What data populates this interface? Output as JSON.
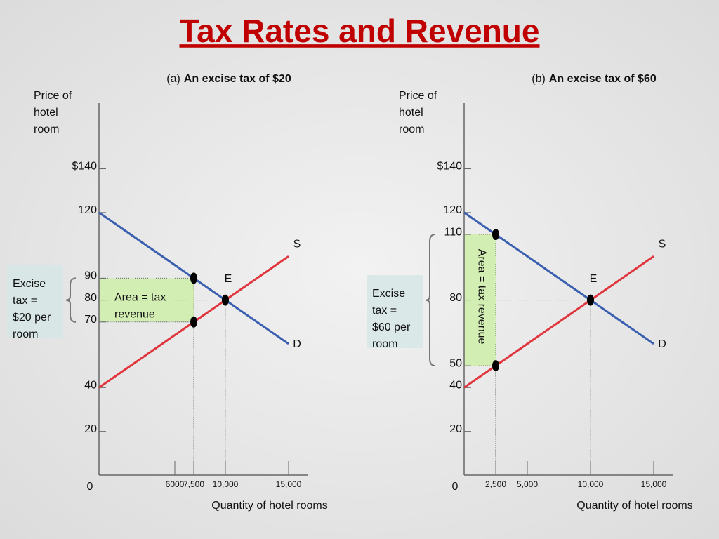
{
  "title": "Tax Rates and Revenue",
  "chart_data": [
    {
      "type": "line",
      "panel": "(a)",
      "subtitle": "An excise tax of $20",
      "y_label": [
        "Price of",
        "hotel",
        "room"
      ],
      "x_label": "Quantity of hotel rooms",
      "origin": 0,
      "xlim": [
        0,
        16500
      ],
      "ylim": [
        0,
        170
      ],
      "xticks": [
        6000,
        {
          "value": 7500,
          "label": "7,500"
        },
        {
          "value": 10000,
          "label": "10,000"
        },
        {
          "value": 15000,
          "label": "15,000"
        }
      ],
      "yticks": [
        20,
        40,
        70,
        80,
        90,
        120,
        {
          "value": 140,
          "label": "$140"
        }
      ],
      "series": [
        {
          "name": "S",
          "color": "#e0353d",
          "x": [
            0,
            15000
          ],
          "values": [
            40,
            100
          ]
        },
        {
          "name": "D",
          "color": "#3a5fb0",
          "x": [
            0,
            15000
          ],
          "values": [
            120,
            60
          ]
        }
      ],
      "equilibrium": {
        "label": "E",
        "x": 10000,
        "value": 80
      },
      "tax_points": {
        "x": [
          7500,
          7500
        ],
        "values": [
          90,
          70
        ]
      },
      "area": {
        "label": [
          "Area = tax",
          "revenue"
        ],
        "rotated": false,
        "x": [
          0,
          7500
        ],
        "y": [
          70,
          90
        ]
      },
      "tax_label": [
        "Excise",
        "tax =",
        "$20 per",
        "room"
      ]
    },
    {
      "type": "line",
      "panel": "(b)",
      "subtitle": "An excise tax of $60",
      "y_label": [
        "Price of",
        "hotel",
        "room"
      ],
      "x_label": "Quantity of hotel rooms",
      "origin": 0,
      "xlim": [
        0,
        16500
      ],
      "ylim": [
        0,
        170
      ],
      "xticks": [
        {
          "value": 2500,
          "label": "2,500"
        },
        {
          "value": 5000,
          "label": "5,000"
        },
        {
          "value": 10000,
          "label": "10,000"
        },
        {
          "value": 15000,
          "label": "15,000"
        }
      ],
      "yticks": [
        20,
        40,
        50,
        80,
        110,
        120,
        {
          "value": 140,
          "label": "$140"
        }
      ],
      "series": [
        {
          "name": "S",
          "color": "#e0353d",
          "x": [
            0,
            15000
          ],
          "values": [
            40,
            100
          ]
        },
        {
          "name": "D",
          "color": "#3a5fb0",
          "x": [
            0,
            15000
          ],
          "values": [
            120,
            60
          ]
        }
      ],
      "equilibrium": {
        "label": "E",
        "x": 10000,
        "value": 80
      },
      "tax_points": {
        "x": [
          2500,
          2500
        ],
        "values": [
          110,
          50
        ]
      },
      "area": {
        "label": [
          "Area = tax revenue"
        ],
        "rotated": true,
        "x": [
          0,
          2500
        ],
        "y": [
          50,
          110
        ]
      },
      "tax_label": [
        "Excise",
        "tax =",
        "$60 per",
        "room"
      ]
    }
  ]
}
